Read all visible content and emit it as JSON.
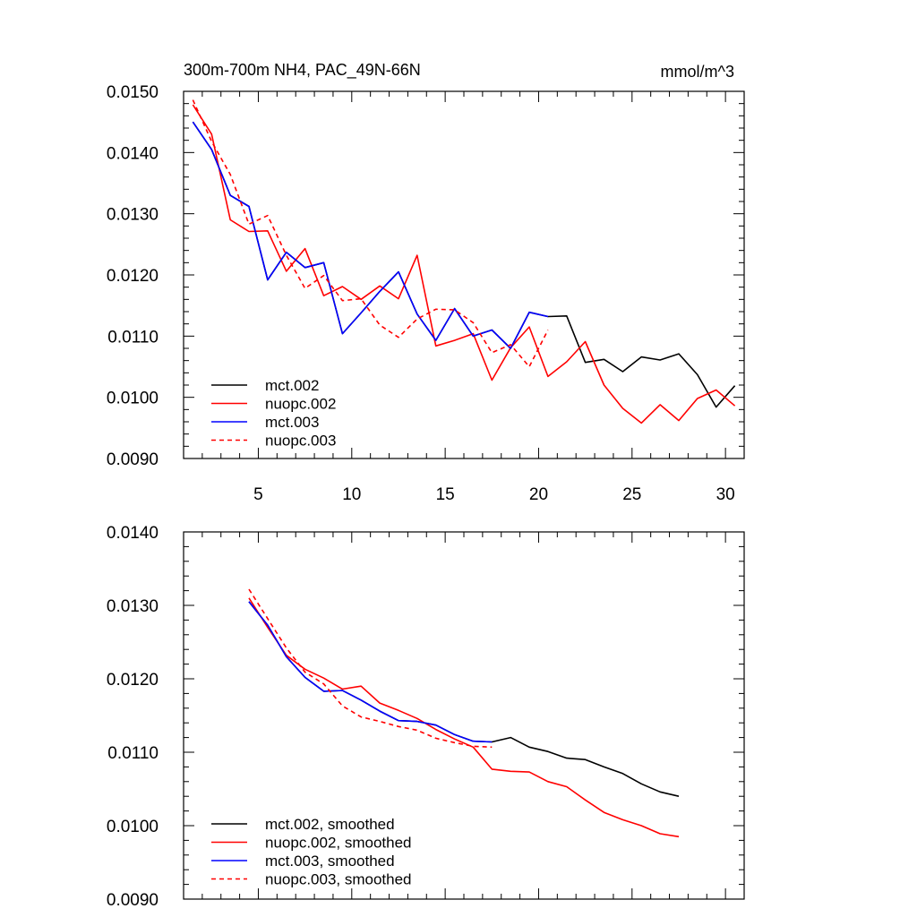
{
  "colors": {
    "mct002": "#000000",
    "nuopc002": "#ff0000",
    "mct003": "#0000ff",
    "nuopc003": "#ff0000"
  },
  "chart_data": [
    {
      "type": "line",
      "title": "300m-700m NH4, PAC_49N-66N",
      "units": "mmol/m^3",
      "xlim": [
        1,
        31
      ],
      "ylim": [
        0.009,
        0.015
      ],
      "xticks": [
        5,
        10,
        15,
        20,
        25,
        30
      ],
      "xtick_labels": [
        "5",
        "10",
        "15",
        "20",
        "25",
        "30"
      ],
      "yticks": [
        0.009,
        0.01,
        0.011,
        0.012,
        0.013,
        0.014,
        0.015
      ],
      "ytick_labels": [
        "0.0090",
        "0.0100",
        "0.0110",
        "0.0120",
        "0.0130",
        "0.0140",
        "0.0150"
      ],
      "legend_position": "bottom-left",
      "series": [
        {
          "name": "mct.002",
          "color": "#000000",
          "dash": "solid",
          "x": [
            1.5,
            2.5,
            3.5,
            4.5,
            5.5,
            6.5,
            7.5,
            8.5,
            9.5,
            10.5,
            11.5,
            12.5,
            13.5,
            14.5,
            15.5,
            16.5,
            17.5,
            18.5,
            19.5,
            20.5,
            21.5,
            22.5,
            23.5,
            24.5,
            25.5,
            26.5,
            27.5,
            28.5,
            29.5,
            30.5
          ],
          "y": [
            0.0145,
            0.01405,
            0.0133,
            0.01312,
            0.01192,
            0.01237,
            0.01212,
            0.0122,
            0.01104,
            0.01138,
            0.01173,
            0.01205,
            0.01136,
            0.01093,
            0.01145,
            0.011,
            0.0111,
            0.0108,
            0.01139,
            0.01132,
            0.01133,
            0.01057,
            0.01062,
            0.01042,
            0.01066,
            0.01061,
            0.01071,
            0.01037,
            0.00984,
            0.01019
          ]
        },
        {
          "name": "nuopc.002",
          "color": "#ff0000",
          "dash": "solid",
          "x": [
            1.5,
            2.5,
            3.5,
            4.5,
            5.5,
            6.5,
            7.5,
            8.5,
            9.5,
            10.5,
            11.5,
            12.5,
            13.5,
            14.5,
            15.5,
            16.5,
            17.5,
            18.5,
            19.5,
            20.5,
            21.5,
            22.5,
            23.5,
            24.5,
            25.5,
            26.5,
            27.5,
            28.5,
            29.5,
            30.5
          ],
          "y": [
            0.01478,
            0.0143,
            0.0129,
            0.01271,
            0.01272,
            0.01206,
            0.01243,
            0.01166,
            0.01181,
            0.0116,
            0.01182,
            0.01161,
            0.01232,
            0.01084,
            0.01093,
            0.01104,
            0.01028,
            0.01081,
            0.01115,
            0.01034,
            0.01058,
            0.01091,
            0.0102,
            0.00982,
            0.00958,
            0.00988,
            0.00962,
            0.00998,
            0.01012,
            0.00986
          ]
        },
        {
          "name": "mct.003",
          "color": "#0000ff",
          "dash": "solid",
          "x": [
            1.5,
            2.5,
            3.5,
            4.5,
            5.5,
            6.5,
            7.5,
            8.5,
            9.5,
            10.5,
            11.5,
            12.5,
            13.5,
            14.5,
            15.5,
            16.5,
            17.5,
            18.5,
            19.5,
            20.5
          ],
          "y": [
            0.0145,
            0.01405,
            0.0133,
            0.01312,
            0.01192,
            0.01237,
            0.01212,
            0.0122,
            0.01104,
            0.01138,
            0.01173,
            0.01205,
            0.01136,
            0.01093,
            0.01145,
            0.011,
            0.0111,
            0.0108,
            0.01139,
            0.01132
          ]
        },
        {
          "name": "nuopc.003",
          "color": "#ff0000",
          "dash": "dashed",
          "x": [
            1.5,
            2.5,
            3.5,
            4.5,
            5.5,
            6.5,
            7.5,
            8.5,
            9.5,
            10.5,
            11.5,
            12.5,
            13.5,
            14.5,
            15.5,
            16.5,
            17.5,
            18.5,
            19.5,
            20.5
          ],
          "y": [
            0.01486,
            0.01418,
            0.01364,
            0.01283,
            0.01297,
            0.01232,
            0.01178,
            0.01199,
            0.01158,
            0.01161,
            0.01118,
            0.01098,
            0.01128,
            0.01144,
            0.01143,
            0.01122,
            0.01073,
            0.01086,
            0.0105,
            0.0111
          ]
        }
      ]
    },
    {
      "type": "line",
      "xlim": [
        1,
        31
      ],
      "ylim": [
        0.009,
        0.014
      ],
      "xticks": [
        5,
        10,
        15,
        20,
        25,
        30
      ],
      "yticks": [
        0.009,
        0.01,
        0.011,
        0.012,
        0.013,
        0.014
      ],
      "ytick_labels": [
        "0.0090",
        "0.0100",
        "0.0110",
        "0.0120",
        "0.0130",
        "0.0140"
      ],
      "legend_position": "bottom-left",
      "series": [
        {
          "name": "mct.002, smoothed",
          "color": "#000000",
          "dash": "solid",
          "x": [
            4.5,
            5.5,
            6.5,
            7.5,
            8.5,
            9.5,
            10.5,
            11.5,
            12.5,
            13.5,
            14.5,
            15.5,
            16.5,
            17.5,
            18.5,
            19.5,
            20.5,
            21.5,
            22.5,
            23.5,
            24.5,
            25.5,
            26.5,
            27.5
          ],
          "y": [
            0.01305,
            0.01273,
            0.0123,
            0.01202,
            0.01183,
            0.01184,
            0.01171,
            0.01156,
            0.01143,
            0.01142,
            0.01137,
            0.01124,
            0.01115,
            0.01114,
            0.0112,
            0.01107,
            0.01101,
            0.01092,
            0.0109,
            0.0108,
            0.01071,
            0.01057,
            0.01046,
            0.0104
          ]
        },
        {
          "name": "nuopc.002, smoothed",
          "color": "#ff0000",
          "dash": "solid",
          "x": [
            4.5,
            5.5,
            6.5,
            7.5,
            8.5,
            9.5,
            10.5,
            11.5,
            12.5,
            13.5,
            14.5,
            15.5,
            16.5,
            17.5,
            18.5,
            19.5,
            20.5,
            21.5,
            22.5,
            23.5,
            24.5,
            25.5,
            26.5,
            27.5
          ],
          "y": [
            0.0131,
            0.0127,
            0.01232,
            0.01213,
            0.01201,
            0.01186,
            0.0119,
            0.01167,
            0.01157,
            0.01146,
            0.01131,
            0.01118,
            0.01107,
            0.01077,
            0.01074,
            0.01073,
            0.0106,
            0.01053,
            0.01035,
            0.01018,
            0.01008,
            0.01,
            0.00989,
            0.00985
          ]
        },
        {
          "name": "mct.003, smoothed",
          "color": "#0000ff",
          "dash": "solid",
          "x": [
            4.5,
            5.5,
            6.5,
            7.5,
            8.5,
            9.5,
            10.5,
            11.5,
            12.5,
            13.5,
            14.5,
            15.5,
            16.5,
            17.5
          ],
          "y": [
            0.01305,
            0.01273,
            0.0123,
            0.01202,
            0.01183,
            0.01184,
            0.01171,
            0.01156,
            0.01143,
            0.01142,
            0.01137,
            0.01124,
            0.01115,
            0.01114
          ]
        },
        {
          "name": "nuopc.003, smoothed",
          "color": "#ff0000",
          "dash": "dashed",
          "x": [
            4.5,
            5.5,
            6.5,
            7.5,
            8.5,
            9.5,
            10.5,
            11.5,
            12.5,
            13.5,
            14.5,
            15.5,
            16.5,
            17.5
          ],
          "y": [
            0.01322,
            0.01282,
            0.01242,
            0.01209,
            0.01193,
            0.01163,
            0.01148,
            0.01142,
            0.01135,
            0.0113,
            0.01119,
            0.01113,
            0.01108,
            0.01107
          ]
        }
      ]
    }
  ]
}
